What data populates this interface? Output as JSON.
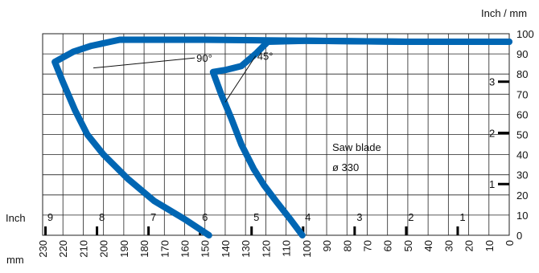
{
  "chart_data": {
    "type": "line",
    "x_unit_label": "mm",
    "y_unit_label": "Inch / mm",
    "inch_scale_label": "Inch",
    "xlim": [
      230,
      0
    ],
    "ylim": [
      0,
      100
    ],
    "x_ticks": [
      "230",
      "220",
      "210",
      "200",
      "190",
      "180",
      "170",
      "160",
      "150",
      "140",
      "130",
      "120",
      "110",
      "100",
      "90",
      "80",
      "70",
      "60",
      "50",
      "40",
      "30",
      "20",
      "10",
      "0"
    ],
    "y_ticks": [
      "0",
      "10",
      "20",
      "30",
      "40",
      "50",
      "60",
      "70",
      "80",
      "90",
      "100"
    ],
    "inch_ticks_x": [
      "9",
      "8",
      "7",
      "6",
      "5",
      "4",
      "3",
      "2",
      "1"
    ],
    "inch_ticks_y": [
      "1",
      "2",
      "3"
    ],
    "grid": true,
    "annotation": {
      "line1": "Saw blade",
      "line2": "ø 330"
    },
    "line_color": "#0066b3",
    "series": [
      {
        "name": "90°",
        "points": [
          [
            148,
            0
          ],
          [
            160,
            8
          ],
          [
            175,
            17
          ],
          [
            188,
            28
          ],
          [
            200,
            40
          ],
          [
            208,
            50
          ],
          [
            214,
            62
          ],
          [
            220,
            76
          ],
          [
            224,
            86
          ],
          [
            215,
            91
          ],
          [
            206,
            94
          ],
          [
            192,
            97
          ],
          [
            150,
            97
          ],
          [
            100,
            96.5
          ],
          [
            50,
            96
          ],
          [
            0,
            96
          ]
        ]
      },
      {
        "name": "45°",
        "points": [
          [
            102,
            0
          ],
          [
            108,
            8
          ],
          [
            115,
            17
          ],
          [
            121,
            25
          ],
          [
            126,
            33
          ],
          [
            132,
            45
          ],
          [
            137,
            58
          ],
          [
            142,
            70
          ],
          [
            146,
            81
          ],
          [
            140,
            82
          ],
          [
            132,
            84
          ],
          [
            125,
            90
          ],
          [
            119,
            96
          ],
          [
            100,
            96.5
          ],
          [
            50,
            96
          ],
          [
            0,
            96
          ]
        ]
      }
    ]
  }
}
